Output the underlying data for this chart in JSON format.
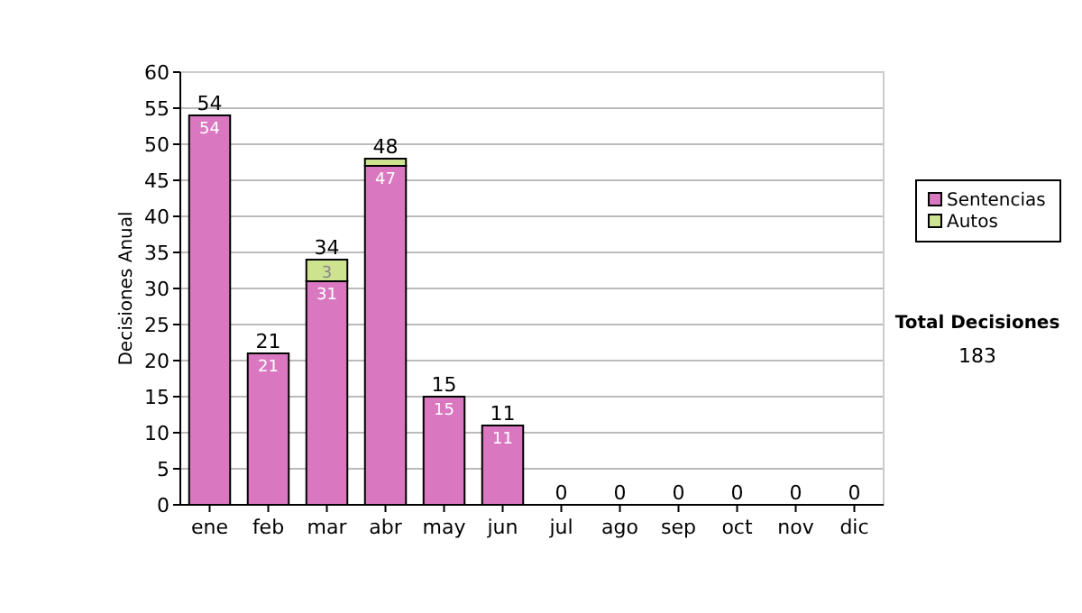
{
  "chart_data": {
    "type": "bar",
    "stacked": true,
    "ylabel": "Decisiones Anual",
    "categories": [
      "ene",
      "feb",
      "mar",
      "abr",
      "may",
      "jun",
      "jul",
      "ago",
      "sep",
      "oct",
      "nov",
      "dic"
    ],
    "series": [
      {
        "name": "Sentencias",
        "color": "#d978c0",
        "values": [
          54,
          21,
          31,
          47,
          15,
          11,
          0,
          0,
          0,
          0,
          0,
          0
        ],
        "value_labels": [
          "54",
          "21",
          "31",
          "47",
          "15",
          "11",
          null,
          null,
          null,
          null,
          null,
          null
        ]
      },
      {
        "name": "Autos",
        "color": "#cde390",
        "values": [
          0,
          0,
          3,
          1,
          0,
          0,
          0,
          0,
          0,
          0,
          0,
          0
        ],
        "value_labels": [
          null,
          null,
          "3",
          null,
          null,
          null,
          null,
          null,
          null,
          null,
          null,
          null
        ]
      }
    ],
    "totals": [
      "54",
      "21",
      "34",
      "48",
      "15",
      "11",
      "0",
      "0",
      "0",
      "0",
      "0",
      "0"
    ],
    "ylim": [
      0,
      60
    ],
    "yticks": [
      0,
      5,
      10,
      15,
      20,
      25,
      30,
      35,
      40,
      45,
      50,
      55,
      60
    ],
    "grid": "y",
    "legend": "right",
    "annotations": [
      "Total Decisiones",
      "183"
    ]
  }
}
